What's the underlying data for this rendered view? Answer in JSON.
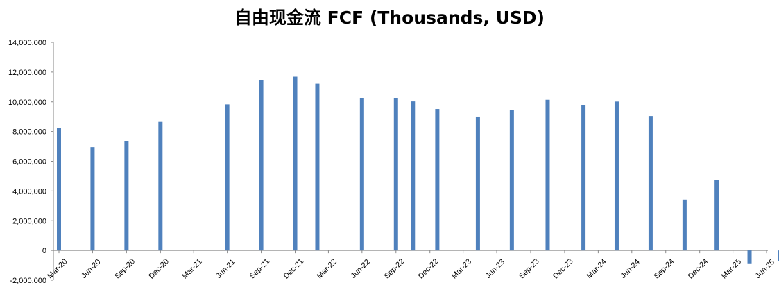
{
  "chart_data": {
    "type": "bar",
    "title": "自由现金流 FCF (Thousands, USD)",
    "xlabel": "",
    "ylabel": "",
    "ylim": [
      -2000000,
      14000000
    ],
    "yticks": [
      -2000000,
      0,
      2000000,
      4000000,
      6000000,
      8000000,
      10000000,
      12000000,
      14000000
    ],
    "ytick_labels": [
      "-2,000,000",
      "0",
      "2,000,000",
      "4,000,000",
      "6,000,000",
      "8,000,000",
      "10,000,000",
      "12,000,000",
      "14,000,000"
    ],
    "x_start": "2020-03-31",
    "x_end": "2025-06-30",
    "tick_labels": [
      {
        "date": "2020-03-31",
        "label": "Mar-20"
      },
      {
        "date": "2020-06-30",
        "label": "Jun-20"
      },
      {
        "date": "2020-09-30",
        "label": "Sep-20"
      },
      {
        "date": "2020-12-31",
        "label": "Dec-20"
      },
      {
        "date": "2021-03-31",
        "label": "Mar-21"
      },
      {
        "date": "2021-06-30",
        "label": "Jun-21"
      },
      {
        "date": "2021-09-30",
        "label": "Sep-21"
      },
      {
        "date": "2021-12-31",
        "label": "Dec-21"
      },
      {
        "date": "2022-03-31",
        "label": "Mar-22"
      },
      {
        "date": "2022-06-30",
        "label": "Jun-22"
      },
      {
        "date": "2022-09-30",
        "label": "Sep-22"
      },
      {
        "date": "2022-12-31",
        "label": "Dec-22"
      },
      {
        "date": "2023-03-31",
        "label": "Mar-23"
      },
      {
        "date": "2023-06-30",
        "label": "Jun-23"
      },
      {
        "date": "2023-09-30",
        "label": "Sep-23"
      },
      {
        "date": "2023-12-31",
        "label": "Dec-23"
      },
      {
        "date": "2024-03-31",
        "label": "Mar-24"
      },
      {
        "date": "2024-06-30",
        "label": "Jun-24"
      },
      {
        "date": "2024-09-30",
        "label": "Sep-24"
      },
      {
        "date": "2024-12-31",
        "label": "Dec-24"
      },
      {
        "date": "2025-03-31",
        "label": "Mar-25"
      },
      {
        "date": "2025-06-30",
        "label": "Jun-25"
      }
    ],
    "points": [
      {
        "date": "2020-03-31",
        "value": 8250000
      },
      {
        "date": "2020-06-30",
        "value": 6950000
      },
      {
        "date": "2020-09-30",
        "value": 7330000
      },
      {
        "date": "2020-12-31",
        "value": 8650000
      },
      {
        "date": "2021-06-30",
        "value": 9830000
      },
      {
        "date": "2021-09-30",
        "value": 11470000
      },
      {
        "date": "2021-12-31",
        "value": 11690000
      },
      {
        "date": "2022-03-01",
        "value": 11220000
      },
      {
        "date": "2022-06-30",
        "value": 10240000
      },
      {
        "date": "2022-09-30",
        "value": 10230000
      },
      {
        "date": "2022-11-15",
        "value": 10030000
      },
      {
        "date": "2023-01-20",
        "value": 9520000
      },
      {
        "date": "2023-05-10",
        "value": 9010000
      },
      {
        "date": "2023-08-10",
        "value": 9460000
      },
      {
        "date": "2023-11-15",
        "value": 10140000
      },
      {
        "date": "2024-02-20",
        "value": 9760000
      },
      {
        "date": "2024-05-20",
        "value": 10020000
      },
      {
        "date": "2024-08-20",
        "value": 9050000
      },
      {
        "date": "2024-11-20",
        "value": 3420000
      },
      {
        "date": "2025-02-15",
        "value": 4720000
      },
      {
        "date": "2025-05-15",
        "value": -870000
      },
      {
        "date": "2025-08-05",
        "value": -720000
      }
    ],
    "bar_color": "#4f81bd",
    "grid": false,
    "legend": "none"
  }
}
